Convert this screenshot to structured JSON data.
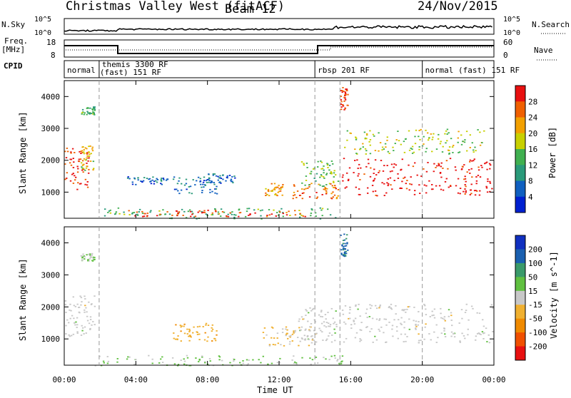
{
  "header": {
    "station": "Christmas Valley West (fitACF)",
    "beam": "Beam 12",
    "date": "24/Nov/2015"
  },
  "panels": {
    "nsky": {
      "label": "N.Sky",
      "right_label": "N.Search",
      "tick_top": "10^5",
      "tick_bottom": "10^0",
      "right_tick_top": "10^5",
      "right_tick_bottom": "10^0"
    },
    "freq": {
      "label_line1": "Freq.",
      "label_line2": "[MHz]",
      "right_label": "Nave",
      "ticks": [
        "18",
        "8"
      ],
      "right_ticks": [
        "60",
        "0"
      ]
    },
    "cpid": {
      "label": "CPID",
      "segments": [
        {
          "label": "normal",
          "start": 0.0,
          "end": 1.95
        },
        {
          "label": "themis 3300 RF",
          "label2": "(fast) 151 RF",
          "start": 1.95,
          "end": 14.0
        },
        {
          "label": "rbsp 201 RF",
          "start": 14.0,
          "end": 20.0
        },
        {
          "label": "normal (fast) 151 RF",
          "start": 20.0,
          "end": 24.0
        }
      ]
    }
  },
  "colors": {
    "power": [
      "#0020d0",
      "#1060c0",
      "#2a9a7a",
      "#40b050",
      "#c8d000",
      "#f2a000",
      "#f06000",
      "#e81010"
    ],
    "velocity": [
      "#e81010",
      "#f05000",
      "#f08a00",
      "#f0b030",
      "#c8c8c8",
      "#60c040",
      "#3a9a6a",
      "#1a60b0",
      "#1030c0"
    ],
    "ground": "#b0b0b0"
  },
  "chart_data": [
    {
      "type": "heatmap",
      "title": "Power",
      "ylabel": "Slant Range [km]",
      "xlabel": "Time UT",
      "x_ticks": [
        "00:00",
        "04:00",
        "08:00",
        "12:00",
        "16:00",
        "20:00",
        "00:00"
      ],
      "xlim_hours": [
        0,
        24
      ],
      "ylim": [
        180,
        4500
      ],
      "y_ticks": [
        "1000",
        "2000",
        "3000",
        "4000"
      ],
      "colorbar": {
        "label": "Power [dB]",
        "ticks": [
          "4",
          "8",
          "12",
          "16",
          "20",
          "24",
          "28"
        ],
        "range": [
          0,
          30
        ]
      },
      "cpid_boundaries_hours": [
        1.95,
        14.0,
        15.4,
        20.0
      ],
      "regions": [
        {
          "t0": 0.0,
          "t1": 1.4,
          "r0": 1100,
          "r1": 2400,
          "value": 27
        },
        {
          "t0": 0.9,
          "t1": 1.6,
          "r0": 1700,
          "r1": 2500,
          "value": 18
        },
        {
          "t0": 0.9,
          "t1": 1.7,
          "r0": 3450,
          "r1": 3700,
          "value": 12
        },
        {
          "t0": 3.5,
          "t1": 5.8,
          "r0": 1250,
          "r1": 1500,
          "value": 6
        },
        {
          "t0": 6.0,
          "t1": 8.5,
          "r0": 950,
          "r1": 1500,
          "value": 7
        },
        {
          "t0": 8.0,
          "t1": 9.5,
          "r0": 1300,
          "r1": 1600,
          "value": 6
        },
        {
          "t0": 11.2,
          "t1": 12.2,
          "r0": 900,
          "r1": 1300,
          "value": 22
        },
        {
          "t0": 12.7,
          "t1": 15.3,
          "r0": 800,
          "r1": 1300,
          "value": 24
        },
        {
          "t0": 13.2,
          "t1": 15.3,
          "r0": 1200,
          "r1": 2000,
          "value": 14
        },
        {
          "t0": 15.5,
          "t1": 23.9,
          "r0": 900,
          "r1": 2100,
          "value": 29
        },
        {
          "t0": 15.6,
          "t1": 23.5,
          "r0": 2200,
          "r1": 3000,
          "value": 16
        },
        {
          "t0": 15.4,
          "t1": 15.8,
          "r0": 3600,
          "r1": 4300,
          "value": 26
        },
        {
          "t0": 1.7,
          "t1": 15.2,
          "r0": 180,
          "r1": 520,
          "value": 12
        },
        {
          "t0": 3.5,
          "t1": 13.5,
          "r0": 250,
          "r1": 450,
          "value": 26
        }
      ]
    },
    {
      "type": "heatmap",
      "title": "Velocity",
      "ylabel": "Slant Range [km]",
      "xlabel": "Time UT",
      "x_ticks": [
        "00:00",
        "04:00",
        "08:00",
        "12:00",
        "16:00",
        "20:00",
        "00:00"
      ],
      "xlim_hours": [
        0,
        24
      ],
      "ylim": [
        180,
        4500
      ],
      "y_ticks": [
        "1000",
        "2000",
        "3000",
        "4000"
      ],
      "colorbar": {
        "label": "Velocity [m s^-1]",
        "ticks": [
          "200",
          "100",
          "50",
          "15",
          "-15",
          "-50",
          "-100",
          "-200"
        ],
        "range": [
          -250,
          250
        ]
      },
      "regions": [
        {
          "t0": 0.0,
          "t1": 1.7,
          "r0": 1100,
          "r1": 2400,
          "value": 0
        },
        {
          "t0": 0.9,
          "t1": 1.7,
          "r0": 3450,
          "r1": 3700,
          "value": 30
        },
        {
          "t0": 6.0,
          "t1": 8.5,
          "r0": 950,
          "r1": 1500,
          "value": -60
        },
        {
          "t0": 11.0,
          "t1": 14.0,
          "r0": 800,
          "r1": 1400,
          "value": -30
        },
        {
          "t0": 13.0,
          "t1": 15.3,
          "r0": 900,
          "r1": 2000,
          "value": 0
        },
        {
          "t0": 15.5,
          "t1": 23.9,
          "r0": 900,
          "r1": 2100,
          "value": 0
        },
        {
          "t0": 1.7,
          "t1": 15.5,
          "r0": 180,
          "r1": 500,
          "value": 30
        },
        {
          "t0": 15.4,
          "t1": 15.8,
          "r0": 3600,
          "r1": 4300,
          "value": 150
        }
      ]
    }
  ]
}
